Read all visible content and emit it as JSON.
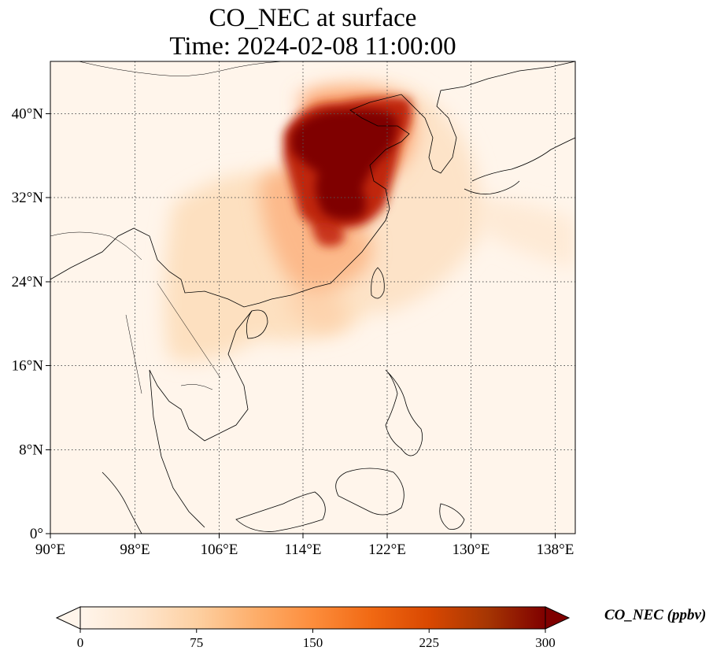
{
  "title": {
    "line1": "CO_NEC at surface",
    "line2": "Time: 2024-02-08 11:00:00"
  },
  "map": {
    "type": "geographic-heatmap",
    "extent": {
      "lon": [
        90,
        139.5
      ],
      "lat": [
        0,
        45
      ]
    },
    "lon_ticks": [
      "90°E",
      "98°E",
      "106°E",
      "114°E",
      "122°E",
      "130°E",
      "138°E"
    ],
    "lat_ticks": [
      "0°",
      "8°N",
      "16°N",
      "24°N",
      "32°N",
      "40°N"
    ],
    "gridlines": "dotted",
    "plumes": [
      {
        "region": "North China Plain",
        "lon": 117,
        "lat": 38,
        "level": "300+"
      },
      {
        "region": "Yangtze River Delta",
        "lon": 119,
        "lat": 32,
        "level": "300+"
      },
      {
        "region": "Central China",
        "lon": 114,
        "lat": 30,
        "level": "225"
      },
      {
        "region": "Southwest China / Indochina",
        "lon": 106,
        "lat": 20,
        "level": "50"
      }
    ]
  },
  "colorbar": {
    "label": "CO_NEC (ppbv)",
    "ticks": [
      "0",
      "75",
      "150",
      "225",
      "300"
    ],
    "range": [
      0,
      300
    ],
    "extend": "both",
    "colormap": [
      "#fff5eb",
      "#fee6ce",
      "#fdd0a2",
      "#fdae6b",
      "#fd8d3c",
      "#f16913",
      "#d94801",
      "#a63603",
      "#7f0000"
    ]
  }
}
